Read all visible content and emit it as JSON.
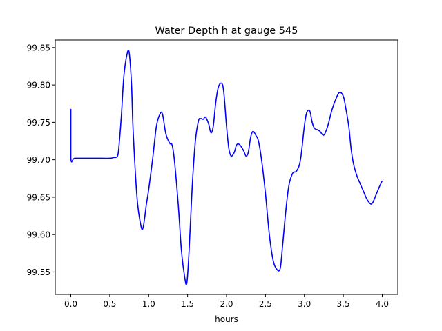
{
  "chart_data": {
    "type": "line",
    "title": "Water Depth h at gauge 545",
    "xlabel": "hours",
    "ylabel": "",
    "xlim": [
      -0.2,
      4.2
    ],
    "ylim": [
      99.52,
      99.86
    ],
    "xticks": [
      0.0,
      0.5,
      1.0,
      1.5,
      2.0,
      2.5,
      3.0,
      3.5,
      4.0
    ],
    "xtick_labels": [
      "0.0",
      "0.5",
      "1.0",
      "1.5",
      "2.0",
      "2.5",
      "3.0",
      "3.5",
      "4.0"
    ],
    "yticks": [
      99.55,
      99.6,
      99.65,
      99.7,
      99.75,
      99.8,
      99.85
    ],
    "ytick_labels": [
      "99.55",
      "99.60",
      "99.65",
      "99.70",
      "99.75",
      "99.80",
      "99.85"
    ],
    "grid": false,
    "legend": "none",
    "series": [
      {
        "color": "#0000ff",
        "x": [
          0.0,
          0.0,
          0.05,
          0.2,
          0.4,
          0.5,
          0.55,
          0.6,
          0.62,
          0.65,
          0.68,
          0.72,
          0.75,
          0.78,
          0.8,
          0.85,
          0.9,
          0.93,
          0.97,
          1.0,
          1.05,
          1.1,
          1.15,
          1.18,
          1.22,
          1.27,
          1.3,
          1.33,
          1.38,
          1.42,
          1.46,
          1.49,
          1.52,
          1.56,
          1.6,
          1.64,
          1.67,
          1.7,
          1.73,
          1.77,
          1.8,
          1.83,
          1.86,
          1.89,
          1.92,
          1.95,
          1.97,
          2.0,
          2.03,
          2.06,
          2.1,
          2.13,
          2.17,
          2.22,
          2.25,
          2.28,
          2.31,
          2.34,
          2.38,
          2.41,
          2.45,
          2.5,
          2.55,
          2.6,
          2.65,
          2.69,
          2.72,
          2.76,
          2.8,
          2.85,
          2.9,
          2.95,
          3.0,
          3.03,
          3.07,
          3.1,
          3.13,
          3.17,
          3.2,
          3.25,
          3.3,
          3.35,
          3.4,
          3.45,
          3.5,
          3.53,
          3.57,
          3.6,
          3.63,
          3.67,
          3.7,
          3.75,
          3.8,
          3.85,
          3.88,
          3.92,
          3.96,
          4.0
        ],
        "y": [
          99.768,
          99.702,
          99.702,
          99.702,
          99.702,
          99.702,
          99.703,
          99.705,
          99.72,
          99.76,
          99.81,
          99.84,
          99.843,
          99.8,
          99.74,
          99.65,
          99.612,
          99.61,
          99.64,
          99.66,
          99.7,
          99.745,
          99.762,
          99.76,
          99.735,
          99.722,
          99.72,
          99.7,
          99.64,
          99.58,
          99.545,
          99.535,
          99.58,
          99.665,
          99.725,
          99.752,
          99.755,
          99.754,
          99.757,
          99.748,
          99.736,
          99.745,
          99.775,
          99.795,
          99.802,
          99.8,
          99.785,
          99.745,
          99.715,
          99.705,
          99.71,
          99.72,
          99.72,
          99.712,
          99.705,
          99.71,
          99.73,
          99.738,
          99.732,
          99.725,
          99.7,
          99.655,
          99.6,
          99.565,
          99.553,
          99.555,
          99.585,
          99.63,
          99.665,
          99.682,
          99.685,
          99.7,
          99.745,
          99.763,
          99.765,
          99.75,
          99.742,
          99.74,
          99.738,
          99.733,
          99.745,
          99.765,
          99.78,
          99.79,
          99.785,
          99.77,
          99.745,
          99.715,
          99.695,
          99.68,
          99.672,
          99.66,
          99.648,
          99.641,
          99.643,
          99.653,
          99.663,
          99.672
        ]
      }
    ]
  }
}
